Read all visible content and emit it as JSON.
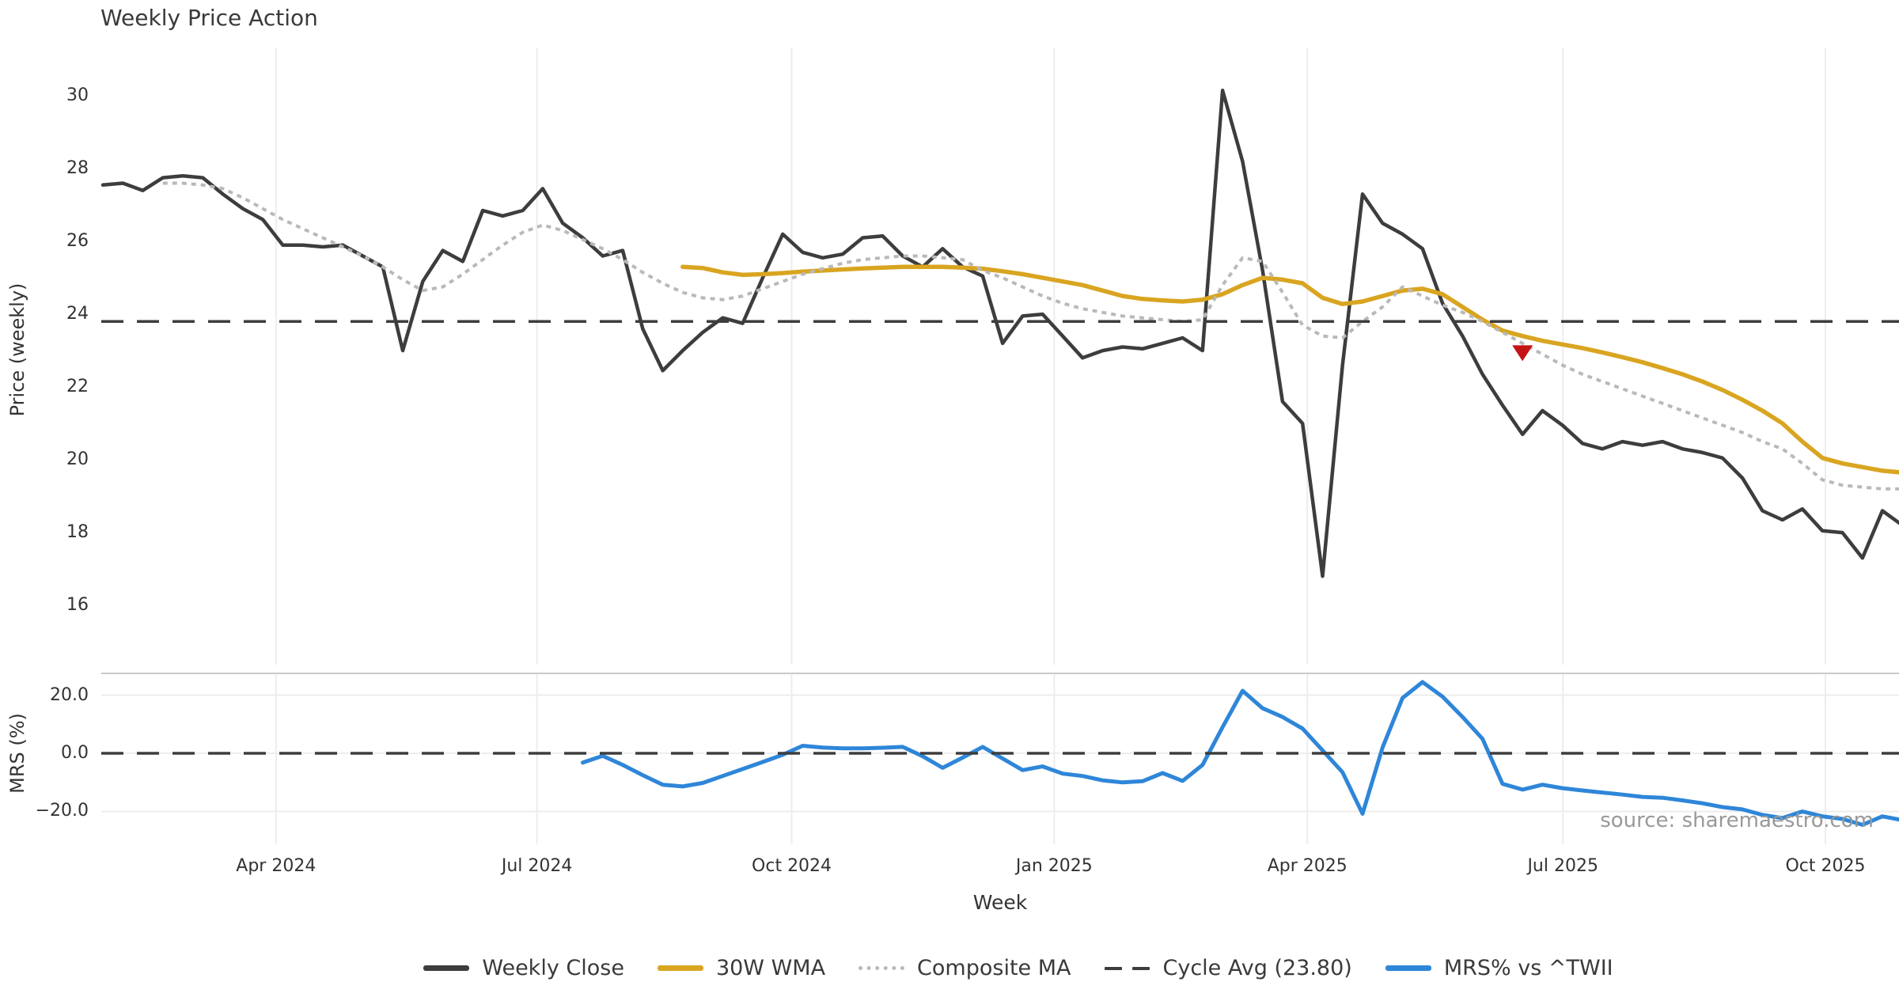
{
  "title": "Weekly Price Action",
  "source": "source: sharemaestro.com",
  "colors": {
    "weekly_close": "#3d3d3d",
    "wma_30w": "#d9a521",
    "composite_ma": "#b9b9b9",
    "cycle_avg": "#3d3d3d",
    "mrs": "#2e86d8",
    "marker": "#c41414",
    "grid": "#ededed",
    "separator": "#c9c9c9",
    "tick_text": "#333333"
  },
  "chart_data": {
    "type": "line",
    "title": "Weekly Price Action",
    "xlabel": "Week",
    "x_unit": "week_index",
    "x_domain": [
      0,
      89.83
    ],
    "x_ticks": [
      {
        "pos": 8.66,
        "label": "Apr 2024"
      },
      {
        "pos": 21.71,
        "label": "Jul 2024"
      },
      {
        "pos": 34.45,
        "label": "Oct 2024"
      },
      {
        "pos": 47.58,
        "label": "Jan 2025"
      },
      {
        "pos": 60.24,
        "label": "Apr 2025"
      },
      {
        "pos": 73.02,
        "label": "Jul 2025"
      },
      {
        "pos": 86.15,
        "label": "Oct 2025"
      }
    ],
    "panels": [
      {
        "id": "price",
        "ylabel": "Price (weekly)",
        "ylim": [
          14.37,
          31.33
        ],
        "yticks": [
          {
            "v": 16,
            "label": "16"
          },
          {
            "v": 18,
            "label": "18"
          },
          {
            "v": 20,
            "label": "20"
          },
          {
            "v": 22,
            "label": "22"
          },
          {
            "v": 24,
            "label": "24"
          },
          {
            "v": 26,
            "label": "26"
          },
          {
            "v": 28,
            "label": "28"
          },
          {
            "v": 30,
            "label": "30"
          }
        ],
        "grid_horizontal": false
      },
      {
        "id": "mrs",
        "ylabel": "MRS (%)",
        "ylim": [
          -31.3,
          27.5
        ],
        "yticks": [
          {
            "v": 20,
            "label": "20.0"
          },
          {
            "v": 0,
            "label": "0.0"
          },
          {
            "v": -20,
            "label": "−20.0"
          }
        ],
        "grid_horizontal": true
      }
    ],
    "series": [
      {
        "id": "weekly_close",
        "panel": "price",
        "name": "Weekly Close",
        "style": "solid",
        "width": 4.5,
        "color_key": "weekly_close",
        "start_week": 0,
        "values": [
          27.55,
          27.6,
          27.4,
          27.75,
          27.8,
          27.75,
          27.3,
          26.9,
          26.6,
          25.9,
          25.9,
          25.85,
          25.9,
          25.6,
          25.3,
          23.0,
          24.9,
          25.75,
          25.45,
          26.85,
          26.7,
          26.85,
          27.45,
          26.5,
          26.1,
          25.6,
          25.75,
          23.6,
          22.45,
          23.0,
          23.5,
          23.9,
          23.75,
          25.0,
          26.2,
          25.7,
          25.55,
          25.65,
          26.1,
          26.15,
          25.6,
          25.3,
          25.8,
          25.3,
          25.05,
          23.2,
          23.95,
          24.0,
          23.4,
          22.8,
          23.0,
          23.1,
          23.05,
          23.2,
          23.35,
          23.0,
          30.15,
          28.2,
          25.2,
          21.6,
          21.0,
          16.8,
          22.6,
          27.3,
          26.5,
          26.2,
          25.8,
          24.3,
          23.4,
          22.35,
          21.5,
          20.7,
          21.35,
          20.95,
          20.45,
          20.3,
          20.5,
          20.4,
          20.5,
          20.3,
          20.2,
          20.05,
          19.5,
          18.6,
          18.35,
          18.65,
          18.05,
          18.0,
          17.3,
          18.6,
          18.2
        ]
      },
      {
        "id": "wma_30w",
        "panel": "price",
        "name": "30W WMA",
        "style": "solid",
        "width": 5.5,
        "color_key": "wma_30w",
        "start_week": 29,
        "values": [
          25.3,
          25.27,
          25.15,
          25.08,
          25.1,
          25.13,
          25.17,
          25.2,
          25.23,
          25.26,
          25.28,
          25.3,
          25.3,
          25.3,
          25.28,
          25.25,
          25.18,
          25.1,
          25.0,
          24.9,
          24.8,
          24.65,
          24.5,
          24.42,
          24.38,
          24.35,
          24.4,
          24.55,
          24.8,
          25.0,
          24.95,
          24.85,
          24.45,
          24.28,
          24.35,
          24.5,
          24.65,
          24.7,
          24.55,
          24.2,
          23.85,
          23.55,
          23.4,
          23.27,
          23.17,
          23.07,
          22.95,
          22.82,
          22.68,
          22.52,
          22.35,
          22.15,
          21.92,
          21.65,
          21.35,
          21.0,
          20.5,
          20.05,
          19.9,
          19.8,
          19.7,
          19.65
        ]
      },
      {
        "id": "composite_ma",
        "panel": "price",
        "name": "Composite MA",
        "style": "dotted",
        "width": 4,
        "color_key": "composite_ma",
        "start_week": 3,
        "values": [
          27.6,
          27.6,
          27.55,
          27.45,
          27.2,
          26.9,
          26.6,
          26.35,
          26.1,
          25.85,
          25.6,
          25.3,
          24.95,
          24.65,
          24.75,
          25.1,
          25.5,
          25.9,
          26.25,
          26.45,
          26.3,
          26.05,
          25.8,
          25.5,
          25.15,
          24.85,
          24.6,
          24.45,
          24.4,
          24.5,
          24.7,
          24.9,
          25.1,
          25.25,
          25.4,
          25.5,
          25.55,
          25.6,
          25.6,
          25.55,
          25.5,
          25.2,
          25.0,
          24.75,
          24.5,
          24.3,
          24.15,
          24.05,
          23.95,
          23.9,
          23.85,
          23.8,
          23.85,
          24.8,
          25.55,
          25.45,
          24.6,
          23.7,
          23.4,
          23.35,
          23.8,
          24.2,
          24.75,
          24.5,
          24.25,
          24.05,
          23.8,
          23.5,
          23.2,
          22.9,
          22.6,
          22.35,
          22.15,
          21.95,
          21.75,
          21.55,
          21.35,
          21.15,
          20.95,
          20.75,
          20.5,
          20.3,
          19.9,
          19.45,
          19.3,
          19.25,
          19.2,
          19.2
        ]
      },
      {
        "id": "cycle_avg",
        "panel": "price",
        "name": "Cycle Avg (23.80)",
        "style": "dashed",
        "width": 3.5,
        "color_key": "cycle_avg",
        "const_value": 23.8
      },
      {
        "id": "mrs_line",
        "panel": "mrs",
        "name": "MRS% vs ^TWII",
        "style": "solid",
        "width": 5,
        "color_key": "mrs",
        "start_week": 24,
        "values": [
          -3.2,
          -0.9,
          -4.0,
          -7.5,
          -10.8,
          -11.4,
          -10.2,
          -7.8,
          -5.4,
          -3.0,
          -0.5,
          2.6,
          2.0,
          1.7,
          1.7,
          1.9,
          2.2,
          -1.0,
          -5.0,
          -1.5,
          2.2,
          -1.8,
          -5.8,
          -4.5,
          -7.0,
          -7.8,
          -9.3,
          -10.0,
          -9.6,
          -6.8,
          -9.5,
          -4.0,
          9.0,
          21.5,
          15.5,
          12.5,
          8.5,
          1.0,
          -6.5,
          -20.8,
          2.0,
          19.0,
          24.5,
          19.5,
          12.5,
          5.0,
          -10.5,
          -12.5,
          -10.8,
          -12.0,
          -12.8,
          -13.5,
          -14.2,
          -15.0,
          -15.3,
          -16.2,
          -17.2,
          -18.5,
          -19.3,
          -21.2,
          -22.3,
          -20.0,
          -21.7,
          -22.6,
          -24.6,
          -21.7,
          -23.0
        ]
      },
      {
        "id": "mrs_zero",
        "panel": "mrs",
        "name": "zero-line",
        "style": "dashed",
        "width": 3.5,
        "color_key": "cycle_avg",
        "const_value": 0,
        "in_legend": false
      }
    ],
    "annotations": [
      {
        "type": "triangle-down",
        "week": 71,
        "value": 22.93,
        "color_key": "marker",
        "name": "sell-signal-marker"
      }
    ],
    "legend": [
      {
        "label": "Weekly Close",
        "style": "solid",
        "color_key": "weekly_close"
      },
      {
        "label": "30W WMA",
        "style": "solid",
        "color_key": "wma_30w"
      },
      {
        "label": "Composite MA",
        "style": "dotted",
        "color_key": "composite_ma"
      },
      {
        "label": "Cycle Avg (23.80)",
        "style": "dashed",
        "color_key": "cycle_avg"
      },
      {
        "label": "MRS% vs ^TWII",
        "style": "solid",
        "color_key": "mrs"
      }
    ],
    "legend_position": "bottom-center",
    "grid": "vertical-months"
  }
}
